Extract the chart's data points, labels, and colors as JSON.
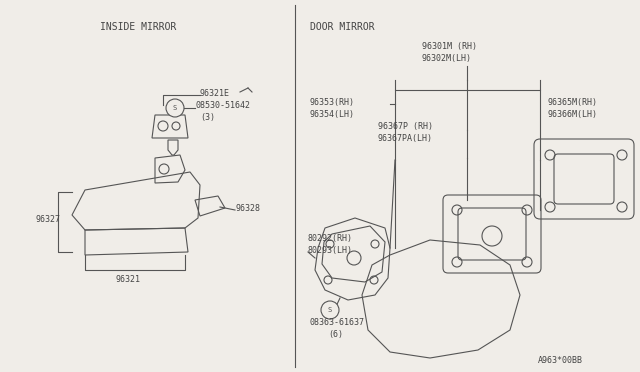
{
  "bg_color": "#f0ede8",
  "line_color": "#555555",
  "text_color": "#444444",
  "fig_w": 6.4,
  "fig_h": 3.72,
  "dpi": 100,
  "title_inside": "INSIDE MIRROR",
  "title_door": "DOOR MIRROR",
  "ref_number": "A963*00BB"
}
